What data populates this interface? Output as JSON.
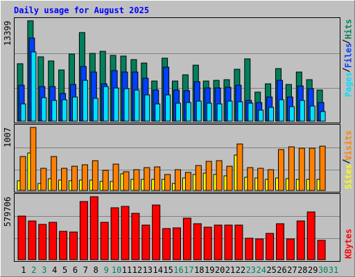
{
  "chart_data": [
    {
      "type": "bar",
      "title": "Daily usage for August 2025",
      "ylim": [
        0,
        13399
      ],
      "yticks": [
        13399
      ],
      "series": [
        {
          "name": "Hits",
          "color": "#00805c",
          "values": [
            7670,
            13399,
            8590,
            8040,
            6840,
            8960,
            11830,
            9050,
            9330,
            8780,
            8690,
            8220,
            7760,
            5360,
            8410,
            5360,
            6190,
            7480,
            5360,
            5450,
            5540,
            6930,
            8320,
            3880,
            4990,
            7020,
            4900,
            6560,
            5540,
            4160,
            0
          ]
        },
        {
          "name": "Files",
          "color": "#0040ff",
          "values": [
            4800,
            11090,
            4620,
            4620,
            3700,
            4900,
            7300,
            6560,
            4990,
            6750,
            6560,
            6560,
            5730,
            4160,
            7210,
            4160,
            4070,
            5270,
            4440,
            4440,
            4530,
            4800,
            2770,
            2490,
            3230,
            5450,
            3230,
            4710,
            4340,
            2490,
            0
          ]
        },
        {
          "name": "Pages",
          "color": "#00e0ff",
          "values": [
            2310,
            9240,
            3140,
            2770,
            2860,
            3230,
            5450,
            3050,
            4620,
            4430,
            4340,
            4160,
            3510,
            2310,
            3510,
            2400,
            2490,
            2680,
            2400,
            2310,
            2680,
            2590,
            2400,
            1480,
            1850,
            2860,
            1940,
            2770,
            2030,
            1290,
            0
          ]
        }
      ]
    },
    {
      "type": "bar",
      "ylim": [
        0,
        1007
      ],
      "yticks": [
        1007
      ],
      "series": [
        {
          "name": "Sites",
          "color": "#ffff00",
          "values": [
            155,
            598,
            111,
            188,
            166,
            155,
            166,
            166,
            144,
            144,
            266,
            177,
            177,
            177,
            177,
            111,
            199,
            255,
            277,
            255,
            233,
            565,
            210,
            199,
            177,
            199,
            188,
            177,
            177,
            177,
            0
          ]
        },
        {
          "name": "Visits",
          "color": "#ff8000",
          "values": [
            542,
            1007,
            354,
            542,
            354,
            387,
            410,
            476,
            321,
            421,
            299,
            332,
            365,
            376,
            255,
            332,
            288,
            398,
            465,
            476,
            387,
            742,
            365,
            354,
            332,
            653,
            697,
            675,
            675,
            708,
            0
          ]
        }
      ]
    },
    {
      "type": "bar",
      "ylim": [
        0,
        579706
      ],
      "yticks": [
        579706
      ],
      "categories": [
        "1",
        "2",
        "3",
        "4",
        "5",
        "6",
        "7",
        "8",
        "9",
        "10",
        "11",
        "12",
        "13",
        "14",
        "15",
        "16",
        "17",
        "18",
        "19",
        "20",
        "21",
        "22",
        "23",
        "24",
        "25",
        "26",
        "27",
        "28",
        "29",
        "30",
        "31"
      ],
      "category_colors": [
        "#000000",
        "#00805c",
        "#00805c",
        "#000000",
        "#000000",
        "#000000",
        "#000000",
        "#000000",
        "#00805c",
        "#00805c",
        "#000000",
        "#000000",
        "#000000",
        "#000000",
        "#000000",
        "#00805c",
        "#00805c",
        "#000000",
        "#000000",
        "#000000",
        "#000000",
        "#000000",
        "#00805c",
        "#00805c",
        "#000000",
        "#000000",
        "#000000",
        "#000000",
        "#000000",
        "#00805c",
        "#00805c"
      ],
      "series": [
        {
          "name": "KBytes",
          "color": "#ff0000",
          "values": [
            401300,
            356700,
            324900,
            344000,
            261200,
            254800,
            535100,
            579706,
            344000,
            477800,
            490500,
            426800,
            318500,
            503200,
            286700,
            293000,
            382200,
            331200,
            299400,
            318500,
            318500,
            318500,
            197500,
            191100,
            242100,
            331200,
            191100,
            356700,
            439500,
            178400,
            0
          ]
        }
      ]
    }
  ]
}
